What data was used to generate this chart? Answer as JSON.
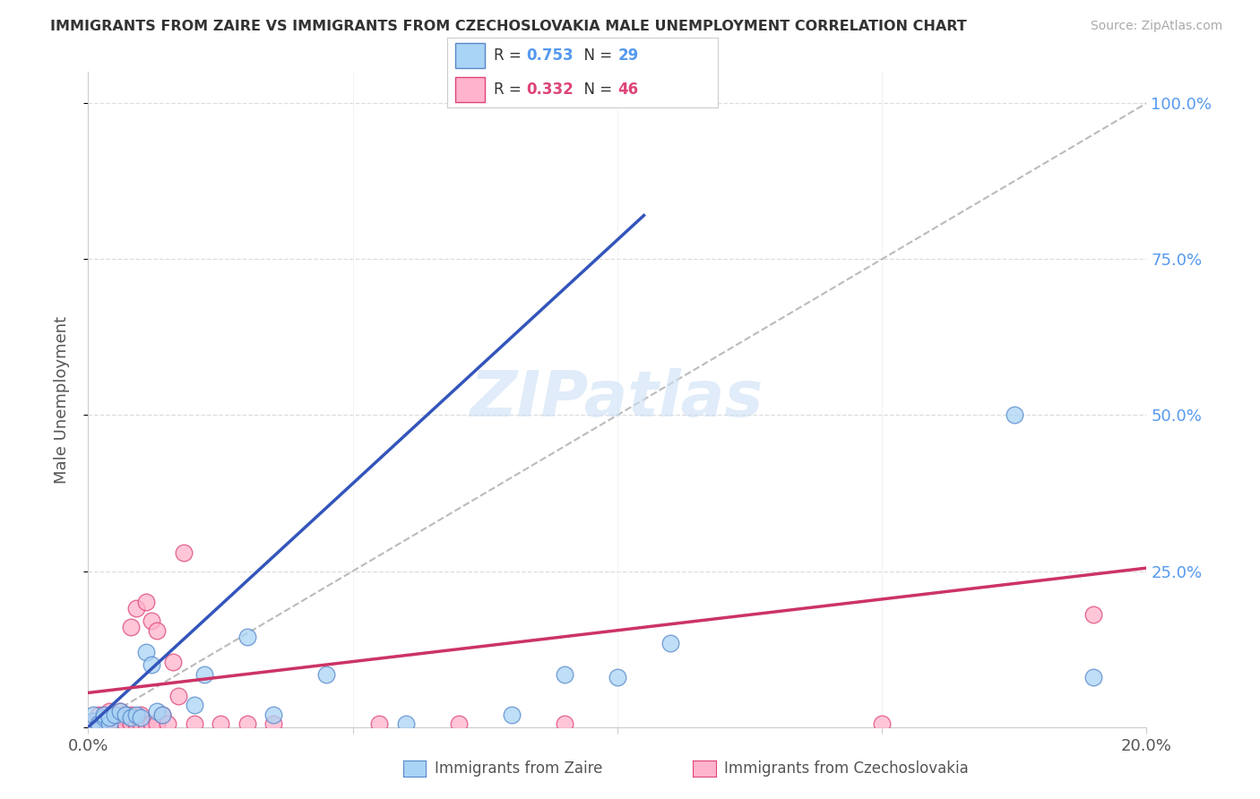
{
  "title": "IMMIGRANTS FROM ZAIRE VS IMMIGRANTS FROM CZECHOSLOVAKIA MALE UNEMPLOYMENT CORRELATION CHART",
  "source": "Source: ZipAtlas.com",
  "ylabel": "Male Unemployment",
  "xlim": [
    0,
    0.2
  ],
  "ylim": [
    0,
    1.05
  ],
  "yticks": [
    0.0,
    0.25,
    0.5,
    0.75,
    1.0
  ],
  "ytick_labels_right": [
    "25.0%",
    "50.0%",
    "75.0%",
    "100.0%"
  ],
  "zaire_color": "#aad4f5",
  "czechoslovakia_color": "#ffb3cc",
  "zaire_edge_color": "#5588cc",
  "czechoslovakia_edge_color": "#dd4477",
  "zaire_line_color": "#3355bb",
  "czechoslovakia_line_color": "#cc3366",
  "right_label_color": "#5599ee",
  "zaire_R": "0.753",
  "zaire_N": "29",
  "czechoslovakia_R": "0.332",
  "czechoslovakia_N": "46",
  "legend_label_zaire": "Immigrants from Zaire",
  "legend_label_czechoslovakia": "Immigrants from Czechoslovakia",
  "watermark": "ZIPatlas",
  "background_color": "#ffffff",
  "zaire_line_x": [
    0.0,
    0.105
  ],
  "zaire_line_y": [
    0.0,
    0.82
  ],
  "czechoslovakia_line_x": [
    0.0,
    0.2
  ],
  "czechoslovakia_line_y": [
    0.055,
    0.255
  ],
  "diag_line_x": [
    0.0,
    0.2
  ],
  "diag_line_y": [
    0.0,
    1.0
  ],
  "zaire_x": [
    0.001,
    0.001,
    0.002,
    0.003,
    0.003,
    0.004,
    0.004,
    0.005,
    0.006,
    0.007,
    0.008,
    0.009,
    0.01,
    0.011,
    0.012,
    0.013,
    0.014,
    0.02,
    0.022,
    0.03,
    0.035,
    0.045,
    0.06,
    0.08,
    0.09,
    0.1,
    0.11,
    0.175,
    0.19
  ],
  "zaire_y": [
    0.01,
    0.02,
    0.005,
    0.015,
    0.02,
    0.005,
    0.015,
    0.02,
    0.025,
    0.02,
    0.015,
    0.02,
    0.015,
    0.12,
    0.1,
    0.025,
    0.02,
    0.035,
    0.085,
    0.145,
    0.02,
    0.085,
    0.005,
    0.02,
    0.085,
    0.08,
    0.135,
    0.5,
    0.08
  ],
  "czechoslovakia_x": [
    0.001,
    0.001,
    0.002,
    0.002,
    0.002,
    0.003,
    0.003,
    0.003,
    0.004,
    0.004,
    0.005,
    0.005,
    0.005,
    0.006,
    0.006,
    0.006,
    0.007,
    0.007,
    0.007,
    0.008,
    0.008,
    0.008,
    0.009,
    0.009,
    0.01,
    0.01,
    0.011,
    0.011,
    0.012,
    0.012,
    0.013,
    0.013,
    0.014,
    0.015,
    0.016,
    0.017,
    0.018,
    0.02,
    0.025,
    0.03,
    0.035,
    0.055,
    0.07,
    0.09,
    0.15,
    0.19
  ],
  "czechoslovakia_y": [
    0.01,
    0.005,
    0.01,
    0.02,
    0.005,
    0.02,
    0.01,
    0.005,
    0.015,
    0.025,
    0.02,
    0.01,
    0.005,
    0.025,
    0.01,
    0.005,
    0.02,
    0.015,
    0.005,
    0.02,
    0.16,
    0.005,
    0.005,
    0.19,
    0.02,
    0.005,
    0.2,
    0.005,
    0.17,
    0.005,
    0.005,
    0.155,
    0.02,
    0.005,
    0.105,
    0.05,
    0.28,
    0.005,
    0.005,
    0.005,
    0.005,
    0.005,
    0.005,
    0.005,
    0.005,
    0.18
  ]
}
